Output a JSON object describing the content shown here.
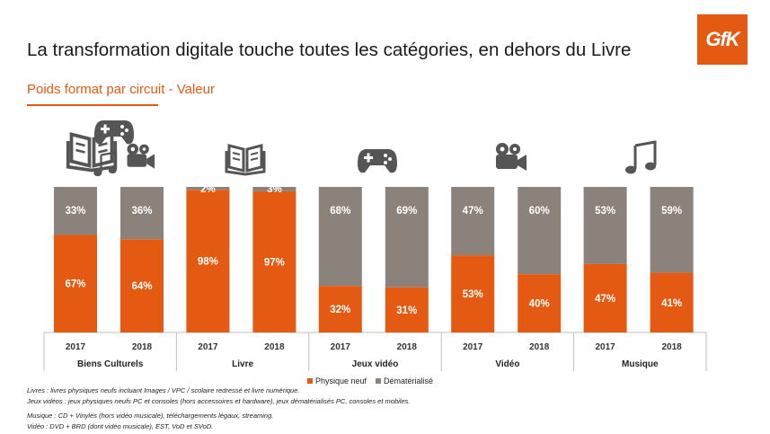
{
  "title": "La transformation digitale touche toutes les catégories, en dehors du Livre",
  "subtitle": "Poids format par circuit - Valeur",
  "logo_text": "GfK",
  "colors": {
    "physique": "#e55a12",
    "dematerialise": "#8b827c",
    "accent": "#e55a12"
  },
  "legend": {
    "physique": "Physique neuf",
    "dematerialise": "Dématérialisé"
  },
  "notes": {
    "livres": "Livres : livres physiques neufs incluant Images / VPC / scolaire redressé et livre numérique.",
    "jeux": "Jeux vidéos : jeux physiques neufs PC et consoles (hors accessoires et hardware), jeux dématérialisés PC, consoles et mobiles.",
    "musique": "Musique : CD + Vinyles (hors vidéo musicale), téléchargements légaux, streaming.",
    "video": "Vidéo : DVD + BRD (dont vidéo musicale), EST, VoD et SVoD."
  },
  "chart_data": {
    "type": "bar",
    "stacked": true,
    "ylim": [
      0,
      100
    ],
    "groups": [
      {
        "name": "Biens Culturels",
        "icons": [
          "book-icon",
          "gamepad-icon",
          "camera-icon",
          "music-note-icon"
        ],
        "categories": [
          "2017",
          "2018"
        ]
      },
      {
        "name": "Livre",
        "icons": [
          "book-icon"
        ],
        "categories": [
          "2017",
          "2018"
        ]
      },
      {
        "name": "Jeux vidéo",
        "icons": [
          "gamepad-icon"
        ],
        "categories": [
          "2017",
          "2018"
        ]
      },
      {
        "name": "Vidéo",
        "icons": [
          "camera-icon"
        ],
        "categories": [
          "2017",
          "2018"
        ]
      },
      {
        "name": "Musique",
        "icons": [
          "music-note-icon"
        ],
        "categories": [
          "2017",
          "2018"
        ]
      }
    ],
    "series": [
      {
        "name": "Physique neuf",
        "values": [
          67,
          64,
          98,
          97,
          32,
          31,
          53,
          40,
          47,
          41
        ]
      },
      {
        "name": "Dématérialisé",
        "values": [
          33,
          36,
          2,
          3,
          68,
          69,
          47,
          60,
          53,
          59
        ]
      }
    ]
  }
}
